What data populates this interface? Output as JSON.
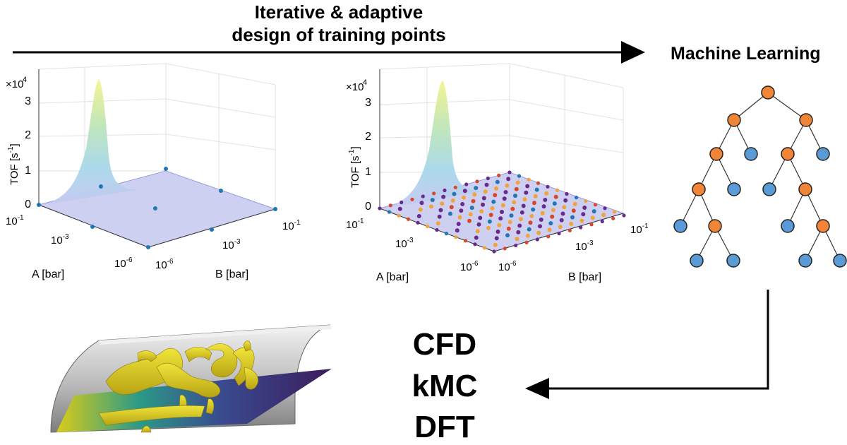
{
  "header": {
    "line1": "Iterative & adaptive",
    "line2": "design of training points"
  },
  "ml": {
    "title": "Machine Learning"
  },
  "methods": [
    "CFD",
    "kMC",
    "DFT"
  ],
  "plots": [
    {
      "exponent_base": "×10",
      "exponent_power": "4",
      "z_ticks": [
        "3",
        "2",
        "1",
        "0"
      ],
      "z_label_base": "TOF [s",
      "z_label_sup": "-1",
      "z_label_end": "]",
      "a_ticks": [
        {
          "b": "10",
          "e": "-1"
        },
        {
          "b": "10",
          "e": "-3"
        },
        {
          "b": "10",
          "e": "-6"
        }
      ],
      "b_ticks": [
        {
          "b": "10",
          "e": "-6"
        },
        {
          "b": "10",
          "e": "-3"
        },
        {
          "b": "10",
          "e": "-1"
        }
      ],
      "a_label": "A [bar]",
      "b_label": "B [bar]"
    },
    {
      "exponent_base": "×10",
      "exponent_power": "4",
      "z_ticks": [
        "3",
        "2",
        "1",
        "0"
      ],
      "z_label_base": "TOF [s",
      "z_label_sup": "-1",
      "z_label_end": "]",
      "a_ticks": [
        {
          "b": "10",
          "e": "-1"
        },
        {
          "b": "10",
          "e": "-3"
        },
        {
          "b": "10",
          "e": "-6"
        }
      ],
      "b_ticks": [
        {
          "b": "10",
          "e": "-6"
        },
        {
          "b": "10",
          "e": "-3"
        },
        {
          "b": "10",
          "e": "-1"
        }
      ],
      "a_label": "A [bar]",
      "b_label": "B [bar]"
    }
  ],
  "colors": {
    "tree_inner": "#f08437",
    "tree_leaf": "#5b9bd5",
    "surface": "#c6c8f0",
    "peak": "#f3f08c",
    "pt_purple": "#6a2a8c",
    "pt_orange": "#f0a33a",
    "pt_blue": "#1f77b4",
    "pt_red": "#d9472b"
  }
}
